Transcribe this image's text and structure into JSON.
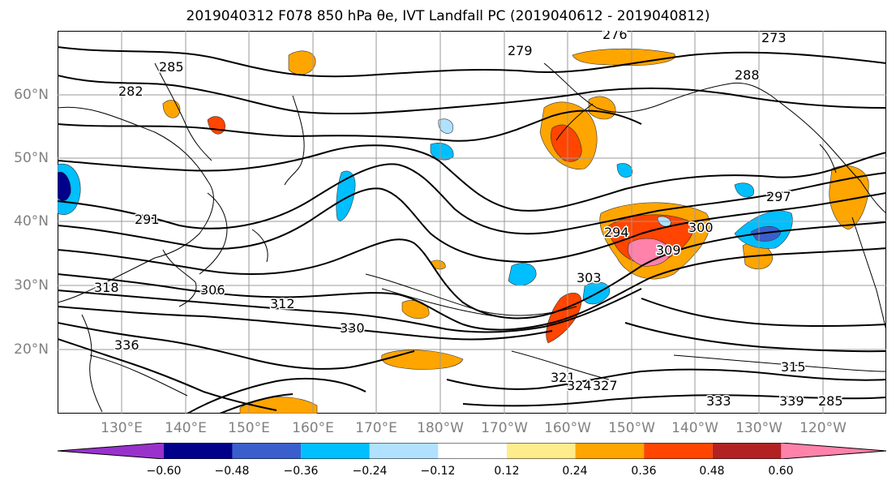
{
  "title": "2019040312 F078 850 hPa θe, IVT Landfall PC (2019040612 - 2019040812)",
  "map": {
    "lat_labels": [
      "60°N",
      "50°N",
      "40°N",
      "30°N",
      "20°N"
    ],
    "lon_labels": [
      "130°E",
      "140°E",
      "150°E",
      "160°E",
      "170°E",
      "180°W",
      "170°W",
      "160°W",
      "150°W",
      "140°W",
      "130°W",
      "120°W"
    ],
    "grid": true,
    "contour_labels": [
      "276",
      "273",
      "279",
      "285",
      "282",
      "288",
      "291",
      "294",
      "297",
      "300",
      "309",
      "306",
      "303",
      "312",
      "315",
      "318",
      "321",
      "324",
      "327",
      "330",
      "333",
      "336",
      "339"
    ]
  },
  "colorbar": {
    "colors": [
      "#9932cc",
      "#00008b",
      "#3a5fcd",
      "#00bfff",
      "#b0e2ff",
      "#ffffff",
      "#ffec8b",
      "#ffa500",
      "#ff4500",
      "#b22222",
      "#ff82ab"
    ],
    "tick_labels": [
      "−0.60",
      "−0.48",
      "−0.36",
      "−0.24",
      "−0.12",
      "0.12",
      "0.24",
      "0.36",
      "0.48",
      "0.60"
    ]
  }
}
